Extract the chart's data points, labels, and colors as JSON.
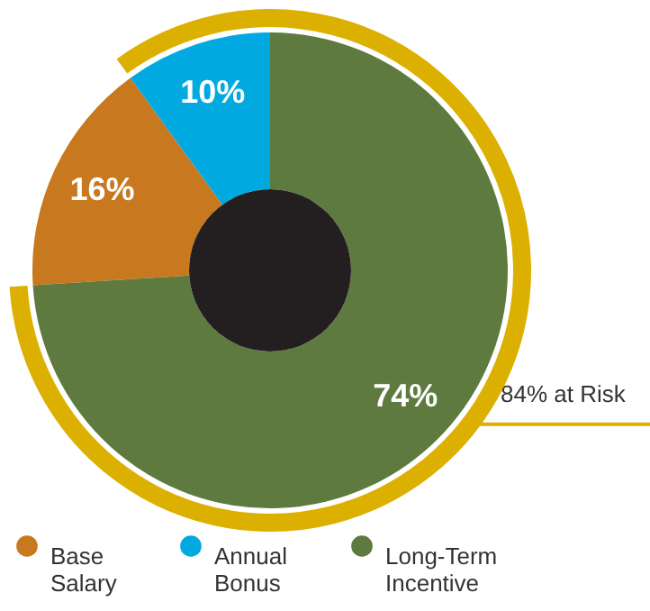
{
  "chart_data": {
    "type": "donut",
    "categories": [
      "Base Salary",
      "Annual Bonus",
      "Long-Term Incentive"
    ],
    "values": [
      16,
      10,
      74
    ],
    "colors": [
      "#c8781e",
      "#00a9e0",
      "#5e7a3e"
    ],
    "value_labels": [
      "16%",
      "10%",
      "74%"
    ],
    "annotations": [
      "84% at Risk"
    ],
    "legend": "bottom"
  }
}
